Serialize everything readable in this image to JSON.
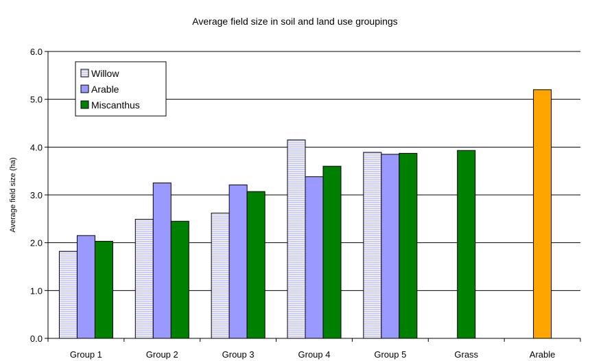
{
  "chart_data": {
    "type": "bar",
    "title": "Average field size in soil and land use groupings",
    "ylabel": "Average field size (ha)",
    "xlabel": "",
    "ylim": [
      0,
      6
    ],
    "yticks": [
      "0.0",
      "1.0",
      "2.0",
      "3.0",
      "4.0",
      "5.0",
      "6.0"
    ],
    "grid": true,
    "legend_position": "top-left",
    "categories": [
      "Group 1",
      "Group 2",
      "Group 3",
      "Group 4",
      "Group 5",
      "Grass",
      "Arable"
    ],
    "series": [
      {
        "name": "Willow",
        "color": "#ccccff",
        "pattern": "horizontal-stripes",
        "values": [
          1.82,
          2.49,
          2.62,
          4.15,
          3.89,
          null,
          null
        ]
      },
      {
        "name": "Arable",
        "color": "#9999ff",
        "pattern": "solid",
        "values": [
          2.15,
          3.25,
          3.21,
          3.38,
          3.85,
          null,
          null
        ]
      },
      {
        "name": "Miscanthus",
        "color": "#008000",
        "pattern": "solid",
        "values": [
          2.03,
          2.45,
          3.07,
          3.6,
          3.87,
          3.93,
          null
        ]
      },
      {
        "name": "",
        "color": "#ffa500",
        "pattern": "solid",
        "values": [
          null,
          null,
          null,
          null,
          null,
          null,
          5.2
        ]
      }
    ]
  }
}
